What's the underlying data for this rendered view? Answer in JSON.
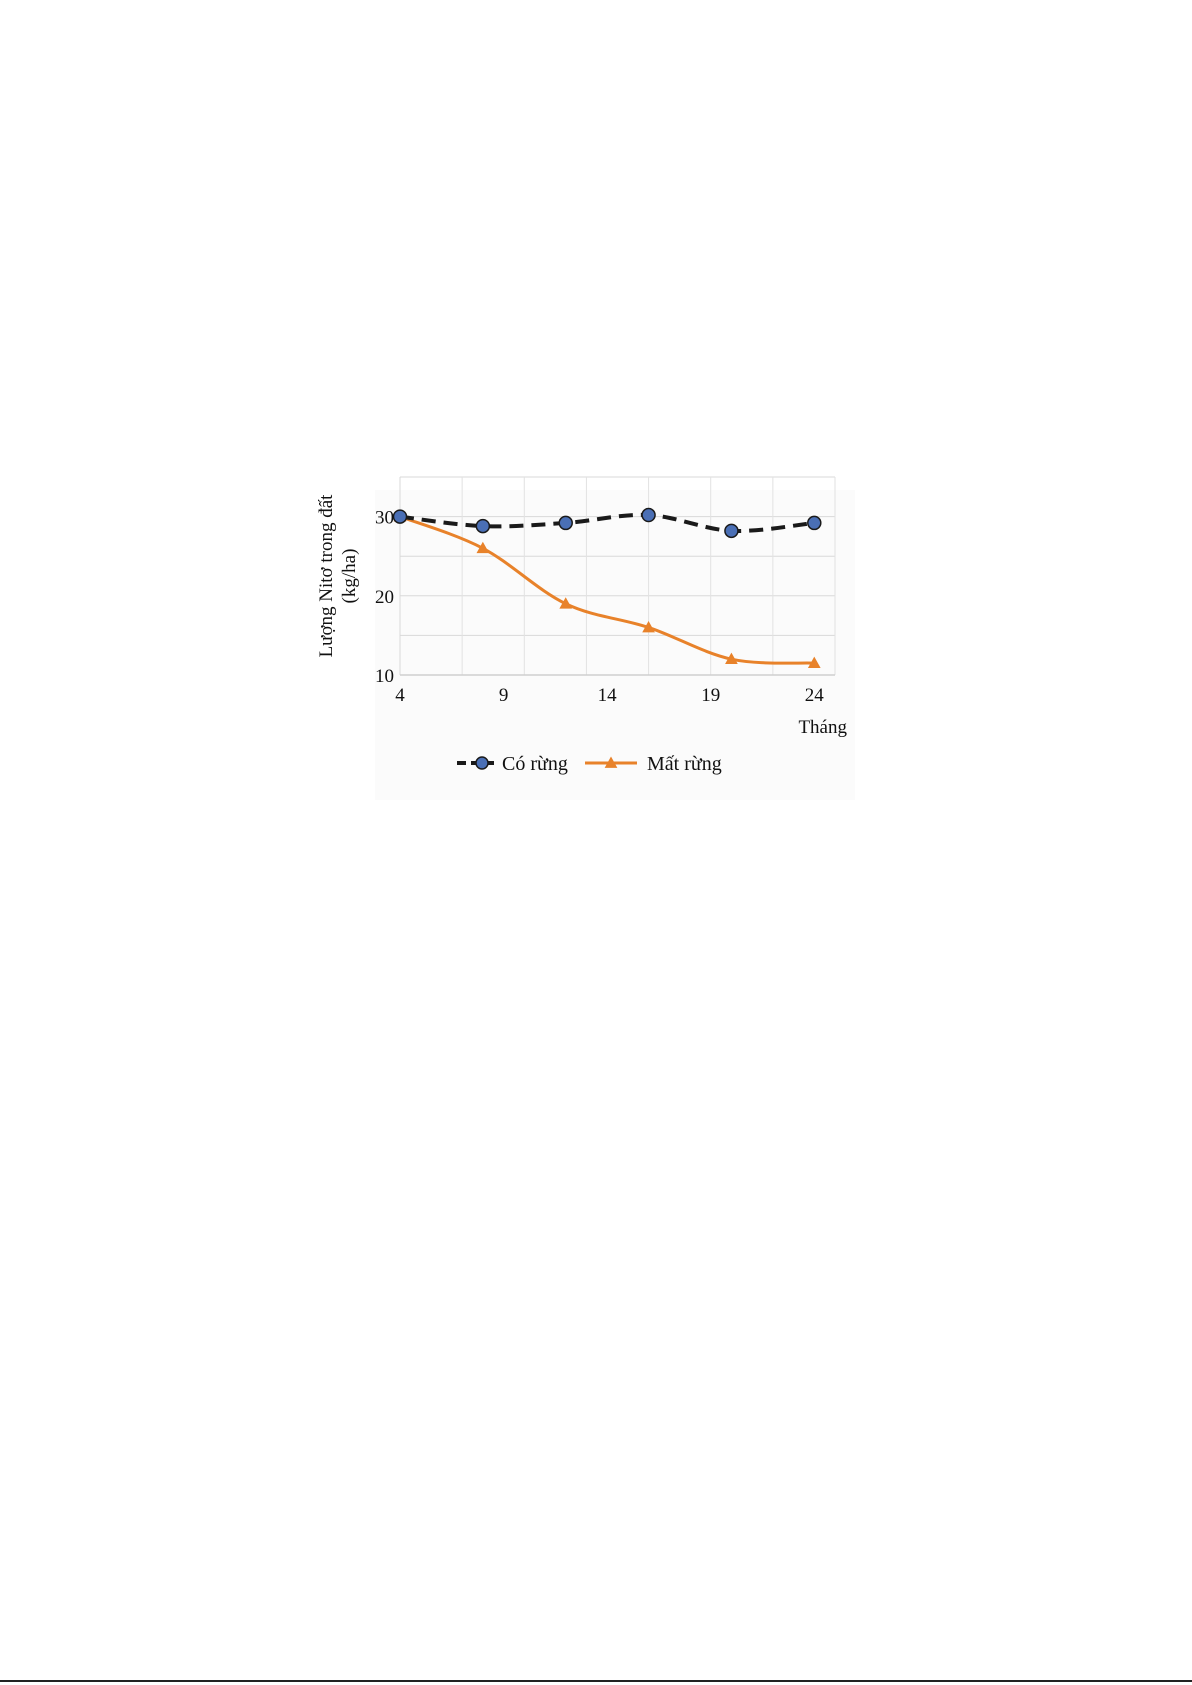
{
  "chart_data": {
    "type": "line",
    "ylabel_line1": "Lượng Nitơ trong đất",
    "ylabel_line2": "(kg/ha)",
    "xlabel": "Tháng",
    "xlim": [
      4,
      25
    ],
    "ylim": [
      10,
      35
    ],
    "x_ticks": [
      4,
      9,
      14,
      19,
      24
    ],
    "y_ticks": [
      10,
      20,
      30
    ],
    "grid": true,
    "legend_position": "bottom",
    "series": [
      {
        "name": "Có rừng",
        "color": "#1a1a1a",
        "marker": "circle",
        "marker_fill": "#4a6fb5",
        "line_style": "dashed",
        "x": [
          4,
          8,
          12,
          16,
          20,
          24
        ],
        "y": [
          30,
          28.8,
          29.2,
          30.2,
          28.2,
          29.2
        ]
      },
      {
        "name": "Mất rừng",
        "color": "#e8822a",
        "marker": "triangle",
        "marker_fill": "#e8822a",
        "line_style": "solid",
        "x": [
          4,
          8,
          12,
          16,
          20,
          24
        ],
        "y": [
          30,
          26,
          19,
          16,
          12,
          11.5
        ]
      }
    ]
  }
}
